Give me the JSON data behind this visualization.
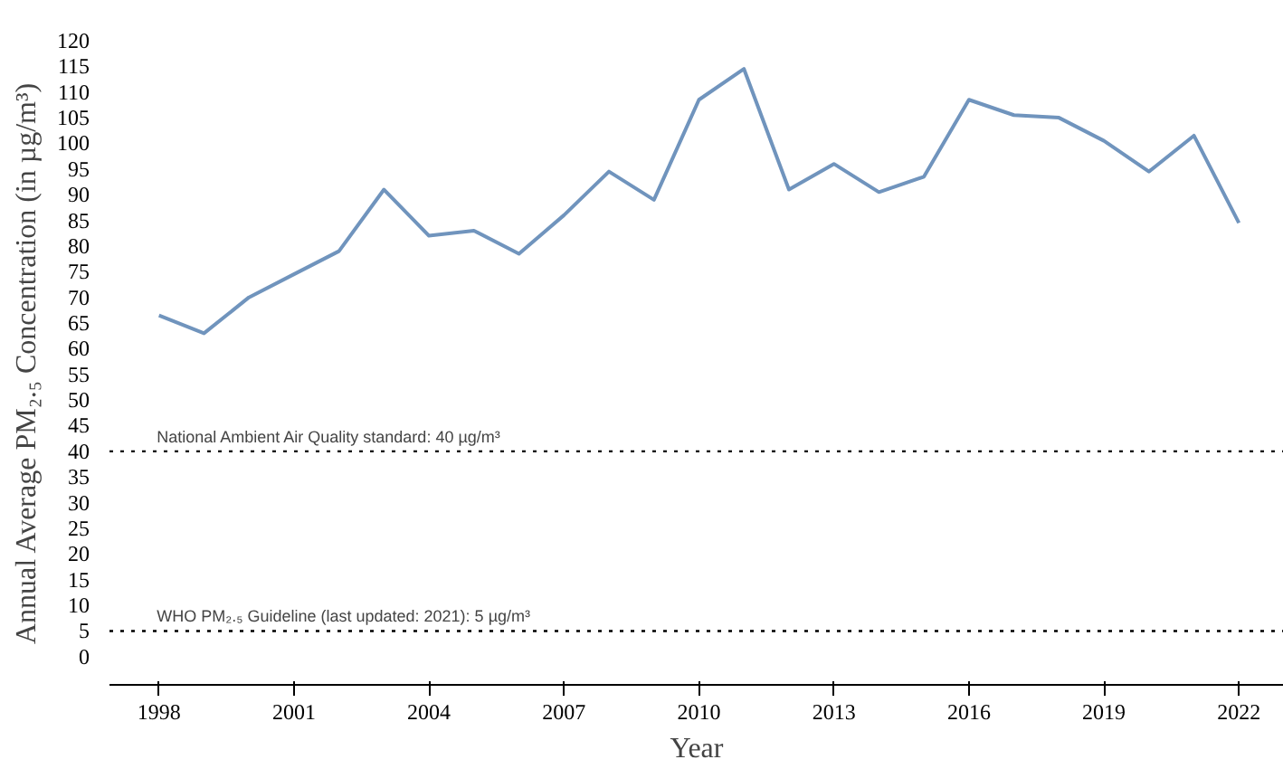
{
  "chart_data": {
    "type": "line",
    "xlabel": "Year",
    "ylabel": "Annual Average PM₂.₅ Concentration (in µg/m³)",
    "x": [
      1998,
      1999,
      2000,
      2001,
      2002,
      2003,
      2004,
      2005,
      2006,
      2007,
      2008,
      2009,
      2010,
      2011,
      2012,
      2013,
      2014,
      2015,
      2016,
      2017,
      2018,
      2019,
      2020,
      2021,
      2022
    ],
    "series": [
      {
        "color": "#7094bd",
        "values": [
          66.5,
          63,
          70,
          74.5,
          79,
          91,
          82,
          83,
          78.5,
          86,
          94.5,
          89,
          108.5,
          114.5,
          91,
          96,
          90.5,
          93.5,
          108.5,
          105.5,
          105,
          100.5,
          94.5,
          101.5,
          84.5
        ]
      }
    ],
    "xlim": [
      1996.9,
      2023
    ],
    "xticks": [
      1998,
      2001,
      2004,
      2007,
      2010,
      2013,
      2016,
      2019,
      2022
    ],
    "ylim": [
      -5.5,
      120
    ],
    "yticks": [
      0,
      5,
      10,
      15,
      20,
      25,
      30,
      35,
      40,
      45,
      50,
      55,
      60,
      65,
      70,
      75,
      80,
      85,
      90,
      95,
      100,
      105,
      110,
      115,
      120
    ],
    "ref_lines": [
      {
        "axis": "y",
        "value": 40,
        "label": "National Ambient Air Quality standard: 40 µg/m³",
        "color": "#000000",
        "line_style": "dotted"
      },
      {
        "axis": "y",
        "value": 5,
        "label": "WHO PM₂.₅ Guideline (last updated: 2021): 5 µg/m³",
        "color": "#000000",
        "line_style": "dotted"
      }
    ],
    "grid": false,
    "line_style": "solid"
  }
}
